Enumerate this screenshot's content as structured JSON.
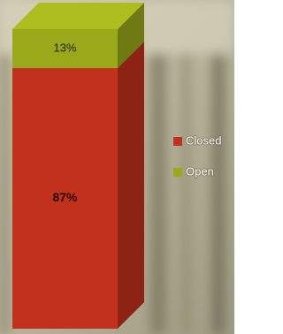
{
  "chart_data": {
    "type": "bar",
    "stacked": true,
    "categories": [
      null
    ],
    "series": [
      {
        "name": "Closed",
        "color": "#c2311c",
        "values": [
          87
        ],
        "value_labels": [
          "87%"
        ]
      },
      {
        "name": "Open",
        "color": "#9aa91a",
        "values": [
          13
        ],
        "value_labels": [
          "13%"
        ]
      }
    ],
    "ylim": [
      0,
      100
    ],
    "legend": "right"
  }
}
